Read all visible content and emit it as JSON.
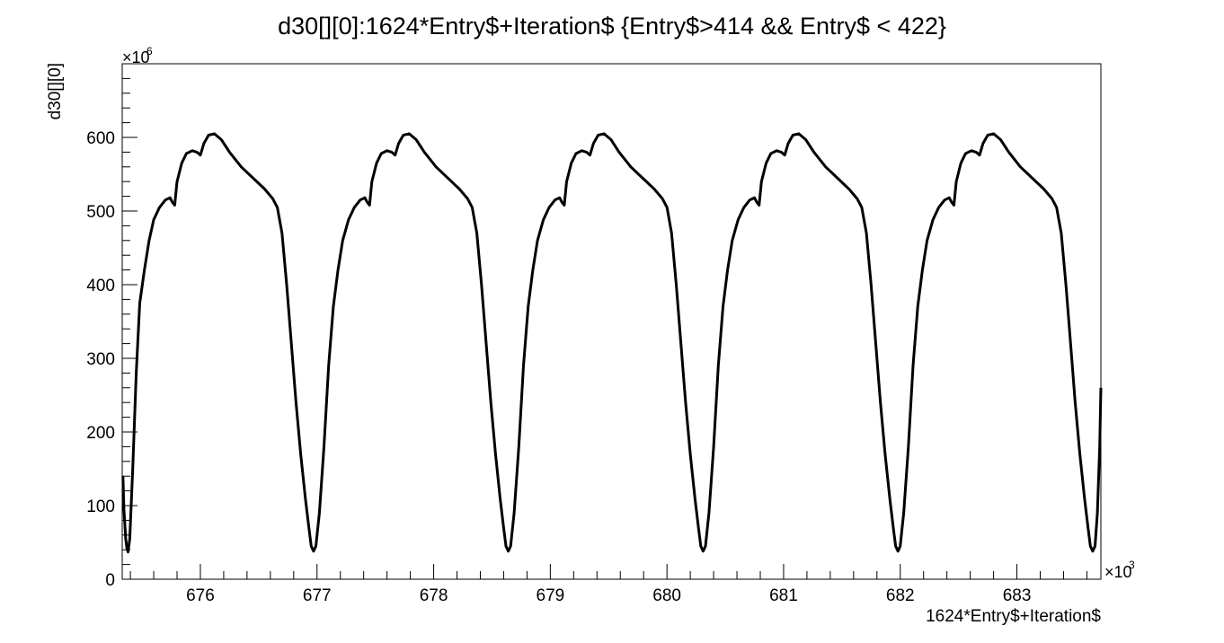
{
  "chart_data": {
    "type": "scatter",
    "title": "d30[][0]:1624*Entry$+Iteration$ {Entry$>414 && Entry$ < 422}",
    "xlabel": "1624*Entry$+Iteration$",
    "ylabel": "d30[][0]",
    "x_exponent_label": "×10",
    "x_exponent": "3",
    "y_exponent_label": "×10",
    "y_exponent": "6",
    "x_unit_scale": 1000,
    "y_unit_scale": 1000000,
    "xlim": [
      675.33,
      683.72
    ],
    "ylim": [
      0,
      700
    ],
    "x_ticks": [
      676,
      677,
      678,
      679,
      680,
      681,
      682,
      683
    ],
    "y_ticks": [
      0,
      100,
      200,
      300,
      400,
      500,
      600
    ],
    "grid": false,
    "legend": "none",
    "line_color": "#000000",
    "series": [
      {
        "points": [
          [
            675.336,
            140
          ],
          [
            675.345,
            95
          ],
          [
            675.36,
            55
          ],
          [
            675.37,
            42
          ],
          [
            675.38,
            37
          ],
          [
            675.395,
            55
          ],
          [
            675.42,
            150
          ],
          [
            675.45,
            280
          ],
          [
            675.48,
            375
          ],
          [
            675.52,
            420
          ],
          [
            675.56,
            460
          ],
          [
            675.6,
            488
          ],
          [
            675.65,
            505
          ],
          [
            675.7,
            515
          ],
          [
            675.74,
            518
          ],
          [
            675.76,
            512
          ],
          [
            675.78,
            508
          ],
          [
            675.8,
            540
          ],
          [
            675.84,
            565
          ],
          [
            675.88,
            578
          ],
          [
            675.93,
            582
          ],
          [
            675.97,
            580
          ],
          [
            676.0,
            576
          ],
          [
            676.03,
            592
          ],
          [
            676.07,
            603
          ],
          [
            676.12,
            605
          ],
          [
            676.18,
            597
          ],
          [
            676.25,
            580
          ],
          [
            676.35,
            560
          ],
          [
            676.45,
            545
          ],
          [
            676.55,
            530
          ],
          [
            676.62,
            517
          ],
          [
            676.66,
            505
          ],
          [
            676.7,
            470
          ],
          [
            676.74,
            400
          ],
          [
            676.78,
            320
          ],
          [
            676.82,
            240
          ],
          [
            676.86,
            170
          ],
          [
            676.9,
            110
          ],
          [
            676.93,
            70
          ],
          [
            676.95,
            45
          ],
          [
            676.97,
            38
          ],
          [
            676.99,
            45
          ],
          [
            677.02,
            90
          ],
          [
            677.06,
            180
          ],
          [
            677.1,
            290
          ],
          [
            677.14,
            370
          ],
          [
            677.18,
            420
          ],
          [
            677.22,
            460
          ],
          [
            677.27,
            488
          ],
          [
            677.32,
            505
          ],
          [
            677.37,
            515
          ],
          [
            677.41,
            518
          ],
          [
            677.43,
            512
          ],
          [
            677.45,
            508
          ],
          [
            677.47,
            540
          ],
          [
            677.51,
            565
          ],
          [
            677.55,
            578
          ],
          [
            677.6,
            582
          ],
          [
            677.64,
            580
          ],
          [
            677.67,
            576
          ],
          [
            677.7,
            592
          ],
          [
            677.74,
            603
          ],
          [
            677.79,
            605
          ],
          [
            677.85,
            597
          ],
          [
            677.92,
            580
          ],
          [
            678.02,
            560
          ],
          [
            678.12,
            545
          ],
          [
            678.22,
            530
          ],
          [
            678.29,
            517
          ],
          [
            678.33,
            505
          ],
          [
            678.37,
            470
          ],
          [
            678.41,
            400
          ],
          [
            678.45,
            320
          ],
          [
            678.49,
            240
          ],
          [
            678.53,
            170
          ],
          [
            678.57,
            110
          ],
          [
            678.6,
            70
          ],
          [
            678.62,
            45
          ],
          [
            678.64,
            38
          ],
          [
            678.66,
            45
          ],
          [
            678.69,
            90
          ],
          [
            678.73,
            180
          ],
          [
            678.77,
            290
          ],
          [
            678.81,
            370
          ],
          [
            678.85,
            420
          ],
          [
            678.89,
            460
          ],
          [
            678.94,
            488
          ],
          [
            678.99,
            505
          ],
          [
            679.04,
            515
          ],
          [
            679.08,
            518
          ],
          [
            679.1,
            512
          ],
          [
            679.12,
            508
          ],
          [
            679.14,
            540
          ],
          [
            679.18,
            565
          ],
          [
            679.22,
            578
          ],
          [
            679.27,
            582
          ],
          [
            679.31,
            580
          ],
          [
            679.34,
            576
          ],
          [
            679.37,
            592
          ],
          [
            679.41,
            603
          ],
          [
            679.46,
            605
          ],
          [
            679.52,
            597
          ],
          [
            679.59,
            580
          ],
          [
            679.69,
            560
          ],
          [
            679.79,
            545
          ],
          [
            679.89,
            530
          ],
          [
            679.96,
            517
          ],
          [
            680.0,
            505
          ],
          [
            680.04,
            470
          ],
          [
            680.08,
            400
          ],
          [
            680.12,
            320
          ],
          [
            680.16,
            240
          ],
          [
            680.2,
            170
          ],
          [
            680.24,
            110
          ],
          [
            680.27,
            70
          ],
          [
            680.29,
            45
          ],
          [
            680.31,
            38
          ],
          [
            680.33,
            45
          ],
          [
            680.36,
            90
          ],
          [
            680.4,
            180
          ],
          [
            680.44,
            290
          ],
          [
            680.48,
            370
          ],
          [
            680.52,
            420
          ],
          [
            680.56,
            460
          ],
          [
            680.61,
            488
          ],
          [
            680.66,
            505
          ],
          [
            680.71,
            515
          ],
          [
            680.75,
            518
          ],
          [
            680.77,
            512
          ],
          [
            680.79,
            508
          ],
          [
            680.81,
            540
          ],
          [
            680.85,
            565
          ],
          [
            680.89,
            578
          ],
          [
            680.94,
            582
          ],
          [
            680.98,
            580
          ],
          [
            681.01,
            576
          ],
          [
            681.04,
            592
          ],
          [
            681.08,
            603
          ],
          [
            681.13,
            605
          ],
          [
            681.19,
            597
          ],
          [
            681.26,
            580
          ],
          [
            681.36,
            560
          ],
          [
            681.46,
            545
          ],
          [
            681.56,
            530
          ],
          [
            681.63,
            517
          ],
          [
            681.67,
            505
          ],
          [
            681.71,
            470
          ],
          [
            681.75,
            400
          ],
          [
            681.79,
            320
          ],
          [
            681.83,
            240
          ],
          [
            681.87,
            170
          ],
          [
            681.91,
            110
          ],
          [
            681.94,
            70
          ],
          [
            681.96,
            45
          ],
          [
            681.98,
            38
          ],
          [
            682.0,
            45
          ],
          [
            682.03,
            90
          ],
          [
            682.07,
            180
          ],
          [
            682.11,
            290
          ],
          [
            682.15,
            370
          ],
          [
            682.19,
            420
          ],
          [
            682.23,
            460
          ],
          [
            682.28,
            488
          ],
          [
            682.33,
            505
          ],
          [
            682.38,
            515
          ],
          [
            682.42,
            518
          ],
          [
            682.44,
            512
          ],
          [
            682.46,
            508
          ],
          [
            682.48,
            540
          ],
          [
            682.52,
            565
          ],
          [
            682.56,
            578
          ],
          [
            682.61,
            582
          ],
          [
            682.65,
            580
          ],
          [
            682.68,
            576
          ],
          [
            682.71,
            592
          ],
          [
            682.75,
            603
          ],
          [
            682.8,
            605
          ],
          [
            682.86,
            597
          ],
          [
            682.93,
            580
          ],
          [
            683.03,
            560
          ],
          [
            683.13,
            545
          ],
          [
            683.23,
            530
          ],
          [
            683.3,
            517
          ],
          [
            683.34,
            505
          ],
          [
            683.38,
            470
          ],
          [
            683.42,
            400
          ],
          [
            683.46,
            320
          ],
          [
            683.5,
            240
          ],
          [
            683.54,
            170
          ],
          [
            683.58,
            110
          ],
          [
            683.61,
            70
          ],
          [
            683.63,
            45
          ],
          [
            683.65,
            38
          ],
          [
            683.67,
            45
          ],
          [
            683.69,
            90
          ],
          [
            683.71,
            180
          ],
          [
            683.72,
            260
          ]
        ]
      }
    ]
  }
}
